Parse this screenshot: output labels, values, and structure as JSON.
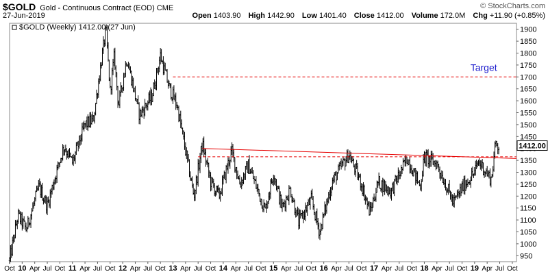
{
  "header": {
    "symbol": "$GOLD",
    "description": "Gold - Continuous Contract (EOD)",
    "exchange": "CME",
    "date": "27-Jun-2019",
    "credit": "© StockCharts.com",
    "open_label": "Open",
    "open_value": "1403.90",
    "high_label": "High",
    "high_value": "1442.90",
    "low_label": "Low",
    "low_value": "1401.40",
    "close_label": "Close",
    "close_value": "1412.00",
    "volume_label": "Volume",
    "volume_value": "172.0M",
    "chg_label": "Chg",
    "chg_value": "+11.90 (+0.85%)"
  },
  "chart_data": {
    "type": "bar",
    "legend": "$GOLD (Weekly) 1412.00 (27 Jun)",
    "current_price_label": "1412.00",
    "current_price": 1412,
    "annotation": "Target",
    "ylim": [
      925,
      1925
    ],
    "y_ticks": [
      950,
      1000,
      1050,
      1100,
      1150,
      1200,
      1250,
      1300,
      1350,
      1400,
      1450,
      1500,
      1550,
      1600,
      1650,
      1700,
      1750,
      1800,
      1850,
      1900
    ],
    "x_ticks": [
      {
        "label": "Oct",
        "date": "2009-10"
      },
      {
        "label": "10",
        "date": "2010-01"
      },
      {
        "label": "Apr",
        "date": "2010-04"
      },
      {
        "label": "Jul",
        "date": "2010-07"
      },
      {
        "label": "Oct",
        "date": "2010-10"
      },
      {
        "label": "11",
        "date": "2011-01"
      },
      {
        "label": "Apr",
        "date": "2011-04"
      },
      {
        "label": "Jul",
        "date": "2011-07"
      },
      {
        "label": "Oct",
        "date": "2011-10"
      },
      {
        "label": "12",
        "date": "2012-01"
      },
      {
        "label": "Apr",
        "date": "2012-04"
      },
      {
        "label": "Jul",
        "date": "2012-07"
      },
      {
        "label": "Oct",
        "date": "2012-10"
      },
      {
        "label": "13",
        "date": "2013-01"
      },
      {
        "label": "Apr",
        "date": "2013-04"
      },
      {
        "label": "Jul",
        "date": "2013-07"
      },
      {
        "label": "Oct",
        "date": "2013-10"
      },
      {
        "label": "14",
        "date": "2014-01"
      },
      {
        "label": "Apr",
        "date": "2014-04"
      },
      {
        "label": "Jul",
        "date": "2014-07"
      },
      {
        "label": "Oct",
        "date": "2014-10"
      },
      {
        "label": "15",
        "date": "2015-01"
      },
      {
        "label": "Apr",
        "date": "2015-04"
      },
      {
        "label": "Jul",
        "date": "2015-07"
      },
      {
        "label": "Oct",
        "date": "2015-10"
      },
      {
        "label": "16",
        "date": "2016-01"
      },
      {
        "label": "Apr",
        "date": "2016-04"
      },
      {
        "label": "Jul",
        "date": "2016-07"
      },
      {
        "label": "Oct",
        "date": "2016-10"
      },
      {
        "label": "17",
        "date": "2017-01"
      },
      {
        "label": "Apr",
        "date": "2017-04"
      },
      {
        "label": "Jul",
        "date": "2017-07"
      },
      {
        "label": "Oct",
        "date": "2017-10"
      },
      {
        "label": "18",
        "date": "2018-01"
      },
      {
        "label": "Apr",
        "date": "2018-04"
      },
      {
        "label": "Jul",
        "date": "2018-07"
      },
      {
        "label": "Oct",
        "date": "2018-10"
      },
      {
        "label": "19",
        "date": "2019-01"
      },
      {
        "label": "Apr",
        "date": "2019-04"
      },
      {
        "label": "Jul",
        "date": "2019-07"
      },
      {
        "label": "Oct",
        "date": "2019-10"
      }
    ],
    "x_range": [
      "2009-10",
      "2019-11"
    ],
    "bar_color": "#000000",
    "line_color": "#e60000",
    "label_color": "#1a1acc",
    "price_path": [
      [
        "2009-10",
        930
      ],
      [
        "2009-12",
        1120
      ],
      [
        "2010-02",
        1060
      ],
      [
        "2010-05",
        1240
      ],
      [
        "2010-07",
        1160
      ],
      [
        "2010-09",
        1290
      ],
      [
        "2010-11",
        1410
      ],
      [
        "2011-01",
        1340
      ],
      [
        "2011-04",
        1500
      ],
      [
        "2011-06",
        1520
      ],
      [
        "2011-08",
        1780
      ],
      [
        "2011-09",
        1900
      ],
      [
        "2011-10",
        1640
      ],
      [
        "2011-11",
        1790
      ],
      [
        "2011-12",
        1580
      ],
      [
        "2012-02",
        1780
      ],
      [
        "2012-05",
        1540
      ],
      [
        "2012-08",
        1620
      ],
      [
        "2012-10",
        1790
      ],
      [
        "2012-12",
        1660
      ],
      [
        "2013-02",
        1580
      ],
      [
        "2013-04",
        1390
      ],
      [
        "2013-06",
        1200
      ],
      [
        "2013-08",
        1420
      ],
      [
        "2013-10",
        1260
      ],
      [
        "2013-12",
        1200
      ],
      [
        "2014-03",
        1390
      ],
      [
        "2014-05",
        1250
      ],
      [
        "2014-07",
        1330
      ],
      [
        "2014-11",
        1140
      ],
      [
        "2015-01",
        1300
      ],
      [
        "2015-03",
        1150
      ],
      [
        "2015-05",
        1230
      ],
      [
        "2015-07",
        1090
      ],
      [
        "2015-10",
        1185
      ],
      [
        "2015-12",
        1050
      ],
      [
        "2016-03",
        1260
      ],
      [
        "2016-07",
        1375
      ],
      [
        "2016-10",
        1250
      ],
      [
        "2016-12",
        1130
      ],
      [
        "2017-02",
        1260
      ],
      [
        "2017-05",
        1220
      ],
      [
        "2017-09",
        1360
      ],
      [
        "2017-12",
        1240
      ],
      [
        "2018-01",
        1365
      ],
      [
        "2018-04",
        1335
      ],
      [
        "2018-08",
        1170
      ],
      [
        "2018-10",
        1235
      ],
      [
        "2019-01",
        1300
      ],
      [
        "2019-02",
        1345
      ],
      [
        "2019-05",
        1270
      ],
      [
        "2019-06",
        1420
      ],
      [
        "2019-06-27",
        1412
      ]
    ],
    "lines": [
      {
        "name": "target",
        "style": "dashed",
        "y": 1700,
        "from": "2013-01",
        "to": "2019-11"
      },
      {
        "name": "resistance-dashed",
        "style": "dashed",
        "y": 1365,
        "from": "2013-07",
        "to": "2019-11"
      },
      {
        "name": "trendline",
        "style": "solid",
        "from": [
          "2013-08",
          1400
        ],
        "to": [
          "2019-11",
          1358
        ]
      }
    ]
  }
}
